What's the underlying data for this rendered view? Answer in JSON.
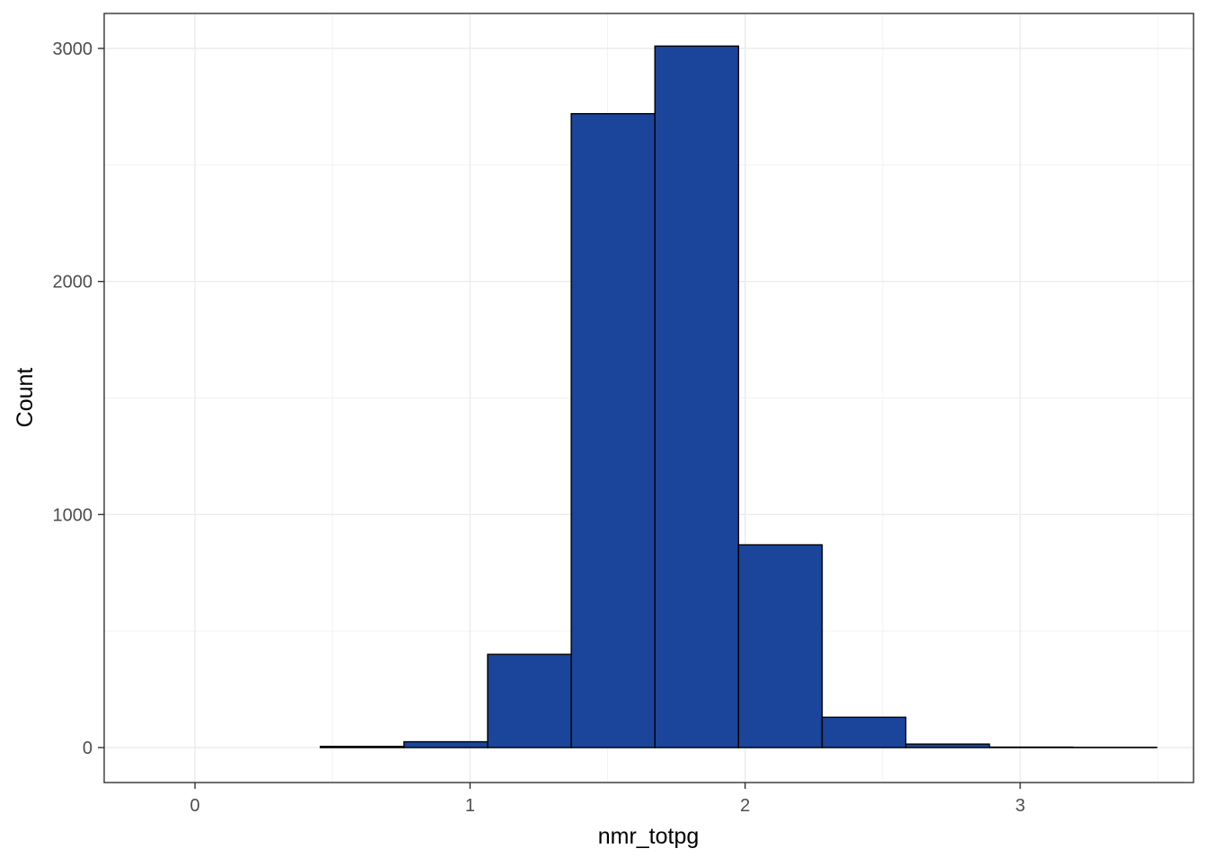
{
  "chart_data": {
    "type": "bar",
    "histogram": true,
    "title": "",
    "xlabel": "nmr_totpg",
    "ylabel": "Count",
    "xlim": [
      -0.33,
      3.63
    ],
    "ylim": [
      -150,
      3150
    ],
    "x_ticks": [
      0,
      1,
      2,
      3
    ],
    "x_tick_labels": [
      "0",
      "1",
      "2",
      "3"
    ],
    "x_minor_ticks": [
      0.5,
      1.5,
      2.5,
      3.5
    ],
    "y_ticks": [
      0,
      1000,
      2000,
      3000
    ],
    "y_tick_labels": [
      "0",
      "1000",
      "2000",
      "3000"
    ],
    "y_minor_ticks": [
      500,
      1500,
      2500
    ],
    "bins": [
      {
        "start": -0.152,
        "end": 0.152,
        "count": 0
      },
      {
        "start": 0.152,
        "end": 0.456,
        "count": 0
      },
      {
        "start": 0.456,
        "end": 0.76,
        "count": 5
      },
      {
        "start": 0.76,
        "end": 1.064,
        "count": 25
      },
      {
        "start": 1.064,
        "end": 1.368,
        "count": 400
      },
      {
        "start": 1.368,
        "end": 1.672,
        "count": 2720
      },
      {
        "start": 1.672,
        "end": 1.976,
        "count": 3010
      },
      {
        "start": 1.976,
        "end": 2.28,
        "count": 870
      },
      {
        "start": 2.28,
        "end": 2.584,
        "count": 130
      },
      {
        "start": 2.584,
        "end": 2.888,
        "count": 15
      },
      {
        "start": 2.888,
        "end": 3.192,
        "count": 2
      },
      {
        "start": 3.192,
        "end": 3.496,
        "count": 1
      }
    ],
    "fill_color": "#1a459b",
    "bar_outline_color": "#000000",
    "grid": true,
    "theme": "bw",
    "legend": "none"
  }
}
